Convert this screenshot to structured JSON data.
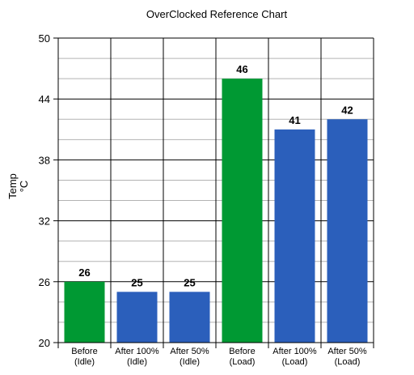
{
  "chart_data": {
    "type": "bar",
    "title": "OverClocked Reference Chart",
    "ylabel": [
      "Temp",
      "°C"
    ],
    "ylim": [
      20,
      50
    ],
    "yticks": [
      20,
      26,
      32,
      38,
      44,
      50
    ],
    "grid": true,
    "categories": [
      [
        "Before",
        "(Idle)"
      ],
      [
        "After 100%",
        "(Idle)"
      ],
      [
        "After 50%",
        "(Idle)"
      ],
      [
        "Before",
        "(Load)"
      ],
      [
        "After 100%",
        "(Load)"
      ],
      [
        "After 50%",
        "(Load)"
      ]
    ],
    "values": [
      26,
      25,
      25,
      46,
      41,
      42
    ],
    "bar_colors": [
      "#009933",
      "#2b5fbb",
      "#2b5fbb",
      "#009933",
      "#2b5fbb",
      "#2b5fbb"
    ],
    "data_labels": [
      "26",
      "25",
      "25",
      "46",
      "41",
      "42"
    ]
  }
}
